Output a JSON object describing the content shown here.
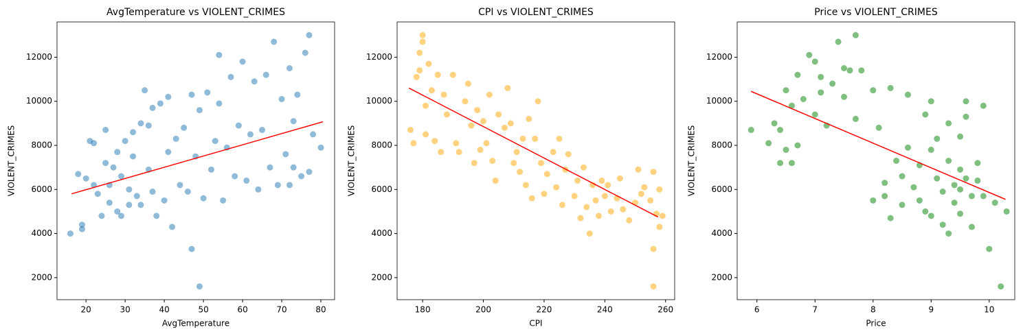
{
  "chart_data": [
    {
      "type": "scatter",
      "title": "AvgTemperature vs VIOLENT_CRIMES",
      "x_label": "AvgTemperature",
      "y_label": "VIOLENT_CRIMES",
      "color": "#1f77b4",
      "xlim": [
        12.6,
        83.5
      ],
      "ylim": [
        1000,
        13600
      ],
      "xticks": [
        20,
        30,
        40,
        50,
        60,
        70,
        80
      ],
      "yticks": [
        2000,
        4000,
        6000,
        8000,
        10000,
        12000
      ],
      "x": [
        16,
        18,
        19,
        19,
        20,
        21,
        22,
        22,
        23,
        24,
        25,
        25,
        26,
        26,
        27,
        28,
        28,
        29,
        29,
        30,
        31,
        31,
        32,
        32,
        33,
        34,
        34,
        35,
        36,
        36,
        37,
        37,
        38,
        39,
        40,
        41,
        41,
        42,
        43,
        44,
        45,
        46,
        47,
        47,
        48,
        49,
        49,
        50,
        51,
        52,
        53,
        54,
        54,
        55,
        56,
        57,
        58,
        59,
        60,
        61,
        62,
        63,
        64,
        65,
        66,
        67,
        68,
        69,
        70,
        71,
        72,
        73,
        74,
        75,
        76,
        77,
        77,
        78,
        80,
        73,
        72
      ],
      "values": [
        4000,
        6700,
        4200,
        4400,
        6500,
        8200,
        8100,
        6200,
        5800,
        4800,
        7200,
        8700,
        6200,
        5400,
        7000,
        7700,
        5000,
        4800,
        6600,
        8200,
        6000,
        5300,
        8600,
        7500,
        5700,
        9000,
        5300,
        10500,
        6900,
        8900,
        5900,
        9700,
        4800,
        9900,
        5500,
        10200,
        7700,
        4300,
        8300,
        6200,
        8800,
        5900,
        10300,
        3300,
        7500,
        9600,
        1600,
        5600,
        10400,
        6900,
        8200,
        12100,
        9900,
        5500,
        7900,
        11100,
        6600,
        8900,
        11800,
        6400,
        8500,
        10900,
        6000,
        8700,
        11200,
        7000,
        12700,
        6200,
        10100,
        7600,
        11500,
        9100,
        10300,
        6600,
        12200,
        13000,
        6800,
        8500,
        7900,
        7000,
        6200
      ],
      "trend_line": {
        "color": "#ff0000",
        "x": [
          16.3,
          80.5
        ],
        "values": [
          5800,
          9070
        ]
      }
    },
    {
      "type": "scatter",
      "title": "CPI vs VIOLENT_CRIMES",
      "x_label": "CPI",
      "y_label": "VIOLENT_CRIMES",
      "color": "#ffa500",
      "xlim": [
        171.6,
        263
      ],
      "ylim": [
        1000,
        13600
      ],
      "xticks": [
        180,
        200,
        220,
        240,
        260
      ],
      "yticks": [
        2000,
        4000,
        6000,
        8000,
        10000,
        12000
      ],
      "x": [
        176,
        177,
        178,
        179,
        179,
        180,
        180,
        181,
        181,
        182,
        183,
        184,
        185,
        186,
        187,
        188,
        190,
        191,
        192,
        194,
        195,
        196,
        197,
        198,
        199,
        200,
        201,
        202,
        203,
        204,
        205,
        207,
        208,
        209,
        210,
        211,
        212,
        213,
        214,
        215,
        216,
        217,
        218,
        219,
        220,
        221,
        223,
        224,
        225,
        226,
        227,
        228,
        230,
        231,
        232,
        233,
        234,
        235,
        236,
        237,
        238,
        239,
        240,
        241,
        242,
        244,
        245,
        246,
        248,
        250,
        251,
        252,
        253,
        255,
        256,
        256,
        256,
        257,
        258,
        259,
        258
      ],
      "values": [
        8700,
        8100,
        11100,
        12200,
        11400,
        13000,
        12700,
        9800,
        8500,
        11700,
        10500,
        8200,
        11200,
        7700,
        10300,
        9400,
        11200,
        8100,
        7700,
        10000,
        10800,
        8900,
        7200,
        9600,
        7800,
        9100,
        8100,
        10300,
        7300,
        6400,
        9400,
        8800,
        10600,
        9000,
        7200,
        7700,
        6800,
        8300,
        6200,
        9200,
        5600,
        8300,
        10000,
        7200,
        5800,
        6700,
        7700,
        6100,
        8300,
        5300,
        6900,
        7600,
        5700,
        6400,
        4700,
        7000,
        5200,
        4000,
        6200,
        5500,
        4800,
        6400,
        5700,
        6200,
        5000,
        5600,
        6500,
        5100,
        4600,
        5400,
        6900,
        5800,
        6100,
        5500,
        6800,
        3300,
        1600,
        4900,
        6000,
        4800,
        4300
      ],
      "trend_line": {
        "color": "#ff0000",
        "x": [
          175.5,
          257.5
        ],
        "values": [
          10600,
          4750
        ]
      }
    },
    {
      "type": "scatter",
      "title": "Price vs VIOLENT_CRIMES",
      "x_label": "Price",
      "y_label": "VIOLENT_CRIMES",
      "color": "#008000",
      "xlim": [
        5.66,
        10.44
      ],
      "ylim": [
        1000,
        13600
      ],
      "xticks": [
        6,
        7,
        8,
        9,
        10
      ],
      "yticks": [
        2000,
        4000,
        6000,
        8000,
        10000,
        12000
      ],
      "x": [
        5.9,
        6.2,
        6.3,
        6.4,
        6.4,
        6.5,
        6.5,
        6.6,
        6.6,
        6.7,
        6.7,
        6.8,
        6.9,
        7.0,
        7.0,
        7.1,
        7.1,
        7.2,
        7.3,
        7.4,
        7.5,
        7.5,
        7.6,
        7.7,
        7.7,
        7.8,
        8.0,
        8.0,
        8.1,
        8.2,
        8.2,
        8.3,
        8.3,
        8.4,
        8.5,
        8.5,
        8.6,
        8.6,
        8.7,
        8.8,
        8.8,
        8.9,
        8.9,
        9.0,
        9.0,
        9.0,
        9.1,
        9.1,
        9.2,
        9.2,
        9.3,
        9.3,
        9.3,
        9.4,
        9.4,
        9.5,
        9.5,
        9.5,
        9.6,
        9.6,
        9.7,
        9.7,
        9.8,
        9.8,
        9.9,
        9.9,
        10.0,
        10.2,
        10.1,
        10.3,
        9.6,
        9.5
      ],
      "values": [
        8700,
        8100,
        9000,
        7200,
        8700,
        7800,
        10500,
        7200,
        9800,
        11200,
        8000,
        10100,
        12100,
        11800,
        9400,
        10400,
        11100,
        8900,
        10800,
        12700,
        11500,
        10200,
        11400,
        13000,
        9200,
        11400,
        10500,
        5500,
        8800,
        6300,
        5700,
        10600,
        4700,
        7300,
        6600,
        5300,
        10300,
        7900,
        6100,
        7100,
        5500,
        9400,
        5000,
        7800,
        4800,
        10000,
        6500,
        8300,
        4400,
        5900,
        7300,
        9000,
        4000,
        6200,
        5400,
        6900,
        8400,
        4900,
        6500,
        10000,
        5700,
        4300,
        7200,
        6400,
        9800,
        5700,
        3300,
        1600,
        5400,
        5000,
        9300,
        6000
      ],
      "trend_line": {
        "color": "#ff0000",
        "x": [
          5.9,
          10.28
        ],
        "values": [
          10450,
          5550
        ]
      }
    }
  ]
}
